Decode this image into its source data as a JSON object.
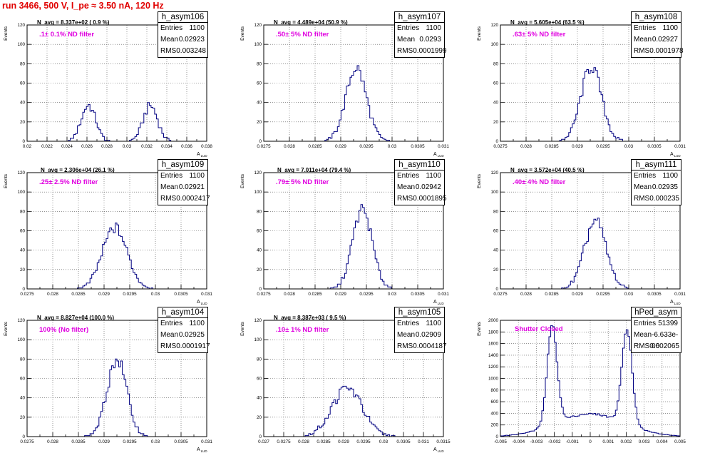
{
  "run_title": "run 3466,   500 V, I_pe ≈ 3.50 nA, 120 Hz",
  "stat_labels": {
    "entries": "Entries",
    "mean": "Mean",
    "rms": "RMS"
  },
  "chart_data": [
    {
      "type": "histogram",
      "name": "h_asym106",
      "entries": "1100",
      "mean": "0.02923",
      "rms": "0.003248",
      "annotation": "N_avg = 8.337e+02 ( 0.9 %)",
      "filter_label": ".1± 0.1% ND filter",
      "ylabel": "Events",
      "xlabel": "A_LUD",
      "xlim": [
        0.02,
        0.038
      ],
      "ylim": [
        0,
        120
      ],
      "xticks": [
        0.02,
        0.022,
        0.024,
        0.026,
        0.028,
        0.03,
        0.032,
        0.034,
        0.036,
        0.038
      ],
      "xtick_labels": [
        "0.02",
        "0.022",
        "0.024",
        "0.026",
        "0.028",
        "0.03",
        "0.032",
        "0.034",
        "0.036",
        "0.038"
      ],
      "yticks": [
        0,
        20,
        40,
        60,
        80,
        100,
        120
      ],
      "peaks": [
        {
          "mu": 0.02615,
          "sigma": 0.00072,
          "amp": 37
        },
        {
          "mu": 0.03235,
          "sigma": 0.00072,
          "amp": 37
        }
      ],
      "bin": 0.00018
    },
    {
      "type": "histogram",
      "name": "h_asym107",
      "entries": "1100",
      "mean": "0.0293",
      "rms": "0.0001999",
      "annotation": "N_avg = 4.489e+04 (50.9 %)",
      "filter_label": ".50± 5% ND filter",
      "ylabel": "Events",
      "xlabel": "A_LUD",
      "xlim": [
        0.0275,
        0.031
      ],
      "ylim": [
        0,
        120
      ],
      "xticks": [
        0.0275,
        0.028,
        0.0285,
        0.029,
        0.0295,
        0.03,
        0.0305,
        0.031
      ],
      "xtick_labels": [
        "0.0275",
        "0.028",
        "0.0285",
        "0.029",
        "0.0295",
        "0.03",
        "0.0305",
        "0.031"
      ],
      "yticks": [
        0,
        20,
        40,
        60,
        80,
        100,
        120
      ],
      "peaks": [
        {
          "mu": 0.0293,
          "sigma": 0.0002,
          "amp": 76
        }
      ],
      "bin": 3.5e-05
    },
    {
      "type": "histogram",
      "name": "h_asym108",
      "entries": "1100",
      "mean": "0.02927",
      "rms": "0.0001978",
      "annotation": "N_avg = 5.605e+04 (63.5 %)",
      "filter_label": ".63± 5% ND filter",
      "ylabel": "Events",
      "xlabel": "A_LUD",
      "xlim": [
        0.0275,
        0.031
      ],
      "ylim": [
        0,
        120
      ],
      "xticks": [
        0.0275,
        0.028,
        0.0285,
        0.029,
        0.0295,
        0.03,
        0.0305,
        0.031
      ],
      "xtick_labels": [
        "0.0275",
        "0.028",
        "0.0285",
        "0.029",
        "0.0295",
        "0.03",
        "0.0305",
        "0.031"
      ],
      "yticks": [
        0,
        20,
        40,
        60,
        80,
        100,
        120
      ],
      "peaks": [
        {
          "mu": 0.02927,
          "sigma": 0.0002,
          "amp": 77
        }
      ],
      "bin": 3.5e-05
    },
    {
      "type": "histogram",
      "name": "h_asym109",
      "entries": "1100",
      "mean": "0.02921",
      "rms": "0.0002417",
      "annotation": "N_avg = 2.306e+04 (26.1 %)",
      "filter_label": ".25± 2.5% ND filter",
      "ylabel": "Events",
      "xlabel": "A_LUD",
      "xlim": [
        0.0275,
        0.031
      ],
      "ylim": [
        0,
        120
      ],
      "xticks": [
        0.0275,
        0.028,
        0.0285,
        0.029,
        0.0295,
        0.03,
        0.0305,
        0.031
      ],
      "xtick_labels": [
        "0.0275",
        "0.028",
        "0.0285",
        "0.029",
        "0.0295",
        "0.03",
        "0.0305",
        "0.031"
      ],
      "yticks": [
        0,
        20,
        40,
        60,
        80,
        100,
        120
      ],
      "peaks": [
        {
          "mu": 0.02921,
          "sigma": 0.00024,
          "amp": 63
        }
      ],
      "bin": 3.5e-05
    },
    {
      "type": "histogram",
      "name": "h_asym110",
      "entries": "1100",
      "mean": "0.02942",
      "rms": "0.0001895",
      "annotation": "N_avg = 7.011e+04 (79.4 %)",
      "filter_label": ".79± 5% ND filter",
      "ylabel": "Events",
      "xlabel": "A_LUD",
      "xlim": [
        0.0275,
        0.031
      ],
      "ylim": [
        0,
        120
      ],
      "xticks": [
        0.0275,
        0.028,
        0.0285,
        0.029,
        0.0295,
        0.03,
        0.0305,
        0.031
      ],
      "xtick_labels": [
        "0.0275",
        "0.028",
        "0.0285",
        "0.029",
        "0.0295",
        "0.03",
        "0.0305",
        "0.031"
      ],
      "yticks": [
        0,
        20,
        40,
        60,
        80,
        100,
        120
      ],
      "peaks": [
        {
          "mu": 0.02942,
          "sigma": 0.00019,
          "amp": 82
        }
      ],
      "bin": 3.5e-05
    },
    {
      "type": "histogram",
      "name": "h_asym111",
      "entries": "1100",
      "mean": "0.02935",
      "rms": "0.000235",
      "annotation": "N_avg = 3.572e+04 (40.5 %)",
      "filter_label": ".40± 4% ND filter",
      "ylabel": "Events",
      "xlabel": "A_LUD",
      "xlim": [
        0.0275,
        0.031
      ],
      "ylim": [
        0,
        120
      ],
      "xticks": [
        0.0275,
        0.028,
        0.0285,
        0.029,
        0.0295,
        0.03,
        0.0305,
        0.031
      ],
      "xtick_labels": [
        "0.0275",
        "0.028",
        "0.0285",
        "0.029",
        "0.0295",
        "0.03",
        "0.0305",
        "0.031"
      ],
      "yticks": [
        0,
        20,
        40,
        60,
        80,
        100,
        120
      ],
      "peaks": [
        {
          "mu": 0.02935,
          "sigma": 0.00021,
          "amp": 70
        }
      ],
      "bin": 3.5e-05
    },
    {
      "type": "histogram",
      "name": "h_asym104",
      "entries": "1100",
      "mean": "0.02925",
      "rms": "0.0001917",
      "annotation": "N_avg = 8.827e+04 (100.0 %)",
      "filter_label": "100% (No filter)",
      "ylabel": "Events",
      "xlabel": "A_LUD",
      "xlim": [
        0.0275,
        0.031
      ],
      "ylim": [
        0,
        120
      ],
      "xticks": [
        0.0275,
        0.028,
        0.0285,
        0.029,
        0.0295,
        0.03,
        0.0305,
        0.031
      ],
      "xtick_labels": [
        "0.0275",
        "0.028",
        "0.0285",
        "0.029",
        "0.0295",
        "0.03",
        "0.0305",
        "0.031"
      ],
      "yticks": [
        0,
        20,
        40,
        60,
        80,
        100,
        120
      ],
      "peaks": [
        {
          "mu": 0.02925,
          "sigma": 0.00019,
          "amp": 80
        }
      ],
      "bin": 3.5e-05
    },
    {
      "type": "histogram",
      "name": "h_asym105",
      "entries": "1100",
      "mean": "0.02909",
      "rms": "0.0004187",
      "annotation": "N_avg = 8.387e+03 ( 9.5 %)",
      "filter_label": ".10± 1% ND filter",
      "ylabel": "Events",
      "xlabel": "A_LUD",
      "xlim": [
        0.027,
        0.0315
      ],
      "ylim": [
        0,
        120
      ],
      "xticks": [
        0.027,
        0.0275,
        0.028,
        0.0285,
        0.029,
        0.0295,
        0.03,
        0.0305,
        0.031,
        0.0315
      ],
      "xtick_labels": [
        "0.027",
        "0.0275",
        "0.028",
        "0.0285",
        "0.029",
        "0.0295",
        "0.03",
        "0.0305",
        "0.031",
        "0.0315"
      ],
      "yticks": [
        0,
        20,
        40,
        60,
        80,
        100,
        120
      ],
      "peaks": [
        {
          "mu": 0.02909,
          "sigma": 0.00038,
          "amp": 50
        }
      ],
      "bin": 4.5e-05
    },
    {
      "type": "histogram",
      "name": "hPed_asym",
      "entries": "51399",
      "mean": "-6.633e-06",
      "rms": "0.002065",
      "annotation": "",
      "filter_label": "Shutter Closed",
      "ylabel": "Events",
      "xlabel": "",
      "xlim": [
        -0.005,
        0.005
      ],
      "ylim": [
        0,
        2000
      ],
      "xticks": [
        -0.005,
        -0.004,
        -0.003,
        -0.002,
        -0.001,
        0,
        0.001,
        0.002,
        0.003,
        0.004,
        0.005
      ],
      "xtick_labels": [
        "-0.005",
        "-0.004",
        "-0.003",
        "-0.002",
        "-0.001",
        "0",
        "0.001",
        "0.002",
        "0.003",
        "0.004",
        "0.005"
      ],
      "yticks": [
        0,
        200,
        400,
        600,
        800,
        1000,
        1200,
        1400,
        1600,
        1800,
        2000
      ],
      "peaks": [
        {
          "mu": -0.00212,
          "sigma": 0.00028,
          "amp": 1700
        },
        {
          "mu": 0.00205,
          "sigma": 0.00028,
          "amp": 1650
        },
        {
          "mu": 0,
          "sigma": 0.0019,
          "amp": 390
        }
      ],
      "bin": 0.0001
    }
  ]
}
